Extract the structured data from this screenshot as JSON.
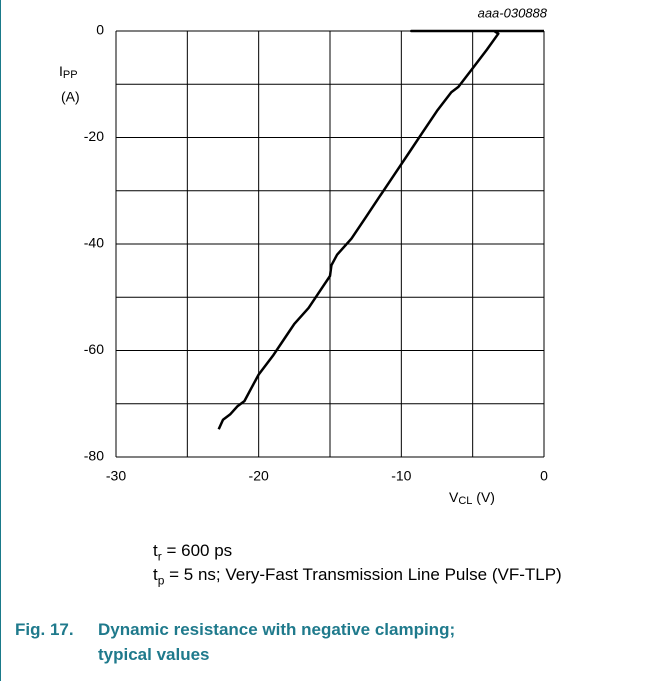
{
  "chart_data": {
    "type": "line",
    "title": "aaa-030888",
    "y_label": {
      "main": "I",
      "sub": "PP",
      "unit": "(A)"
    },
    "x_label": {
      "main": "V",
      "sub": "CL",
      "unit": "(V)"
    },
    "xlim": [
      -30,
      0
    ],
    "ylim": [
      -80,
      0
    ],
    "xticks": [
      -30,
      -20,
      -10,
      0
    ],
    "yticks": [
      -80,
      -60,
      -40,
      -20,
      0
    ],
    "xgrid": [
      -30,
      -25,
      -20,
      -15,
      -10,
      -5,
      0
    ],
    "ygrid": [
      -80,
      -70,
      -60,
      -50,
      -40,
      -30,
      -20,
      -10,
      0
    ],
    "grid": true,
    "series": [
      {
        "color": "#000000",
        "x": [
          -22.8,
          -22.5,
          -22,
          -21.5,
          -21,
          -20.5,
          -20,
          -19,
          -18,
          -17.5,
          -16.5,
          -15.5,
          -15,
          -14.9,
          -14.5,
          -13.5,
          -12.5,
          -11.5,
          -10.5,
          -9.5,
          -8.5,
          -7.5,
          -6.5,
          -6,
          -5,
          -4,
          -3.2,
          -3.5,
          -9.3,
          0
        ],
        "values": [
          -74.8,
          -73,
          -72,
          -70.5,
          -69.5,
          -67,
          -64.5,
          -61,
          -57,
          -55,
          -52,
          -48,
          -46,
          -44,
          -42,
          -39,
          -35,
          -31,
          -27,
          -23,
          -19,
          -15,
          -11.5,
          -10.5,
          -7,
          -3.5,
          -0.5,
          0,
          0,
          0
        ]
      }
    ]
  },
  "notes": [
    {
      "main": "t",
      "sub": "r",
      "text": " = 600 ps"
    },
    {
      "main": "t",
      "sub": "p",
      "text": " = 5 ns; Very-Fast Transmission Line Pulse (VF-TLP)"
    }
  ],
  "caption": {
    "number": "Fig. 17.",
    "text": "Dynamic resistance with negative clamping; typical values"
  }
}
